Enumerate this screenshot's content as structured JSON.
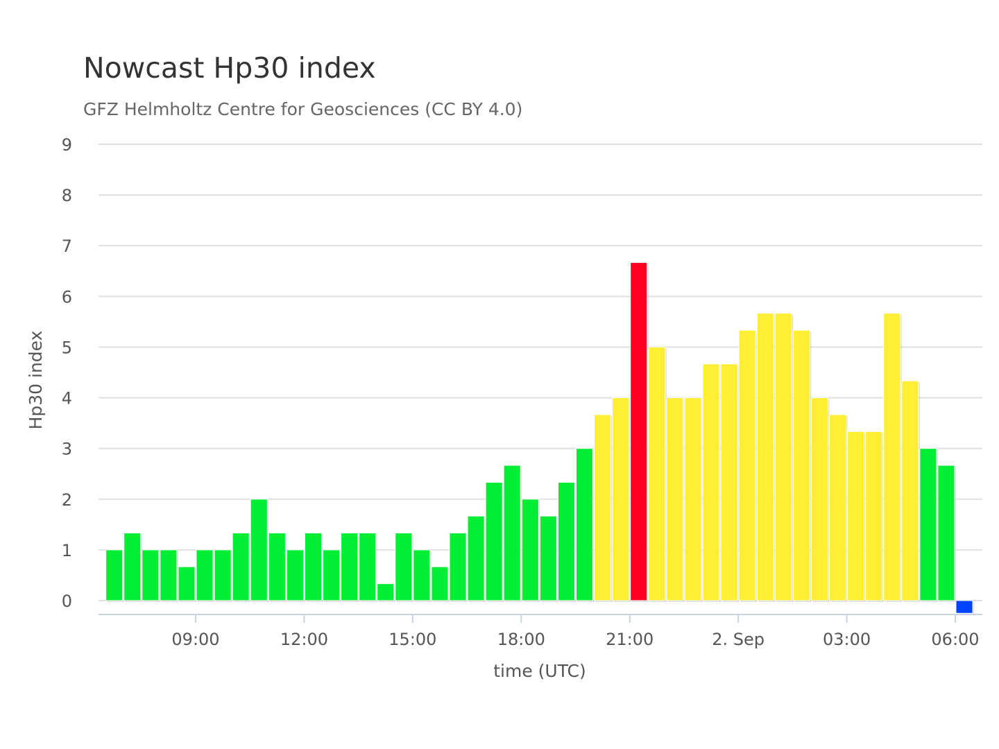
{
  "chart_data": {
    "type": "bar",
    "title": "Nowcast Hp30 index",
    "subtitle": "GFZ Helmholtz Centre for Geosciences (CC BY 4.0)",
    "xlabel": "time (UTC)",
    "ylabel": "Hp30 index",
    "ylim": [
      0,
      9
    ],
    "yticks": [
      0,
      1,
      2,
      3,
      4,
      5,
      6,
      7,
      8,
      9
    ],
    "xticks": [
      {
        "label": "09:00",
        "hour": 9
      },
      {
        "label": "12:00",
        "hour": 12
      },
      {
        "label": "15:00",
        "hour": 15
      },
      {
        "label": "18:00",
        "hour": 18
      },
      {
        "label": "21:00",
        "hour": 21
      },
      {
        "label": "2. Sep",
        "hour": 24
      },
      {
        "label": "03:00",
        "hour": 27
      },
      {
        "label": "06:00",
        "hour": 30
      }
    ],
    "x_start_hour": 6.5,
    "bar_interval_hours": 0.5,
    "grid": true,
    "legend": "none",
    "colors": {
      "green": "#00ee33",
      "yellow": "#ffee33",
      "red": "#ff0022",
      "blue": "#0044ff"
    },
    "values": [
      1,
      1.333,
      1,
      1,
      0.667,
      1,
      1,
      1.333,
      2,
      1.333,
      1,
      1.333,
      1,
      1.333,
      1.333,
      0.333,
      1.333,
      1,
      0.667,
      1.333,
      1.667,
      2.333,
      2.667,
      2,
      1.667,
      2.333,
      3,
      3.667,
      4,
      6.667,
      5,
      4,
      4,
      4.667,
      4.667,
      5.333,
      5.667,
      5.667,
      5.333,
      4,
      3.667,
      3.333,
      3.333,
      5.667,
      4.333,
      3,
      2.667,
      -0.25
    ],
    "bar_colors": [
      "green",
      "green",
      "green",
      "green",
      "green",
      "green",
      "green",
      "green",
      "green",
      "green",
      "green",
      "green",
      "green",
      "green",
      "green",
      "green",
      "green",
      "green",
      "green",
      "green",
      "green",
      "green",
      "green",
      "green",
      "green",
      "green",
      "green",
      "yellow",
      "yellow",
      "red",
      "yellow",
      "yellow",
      "yellow",
      "yellow",
      "yellow",
      "yellow",
      "yellow",
      "yellow",
      "yellow",
      "yellow",
      "yellow",
      "yellow",
      "yellow",
      "yellow",
      "yellow",
      "green",
      "green",
      "blue"
    ]
  }
}
